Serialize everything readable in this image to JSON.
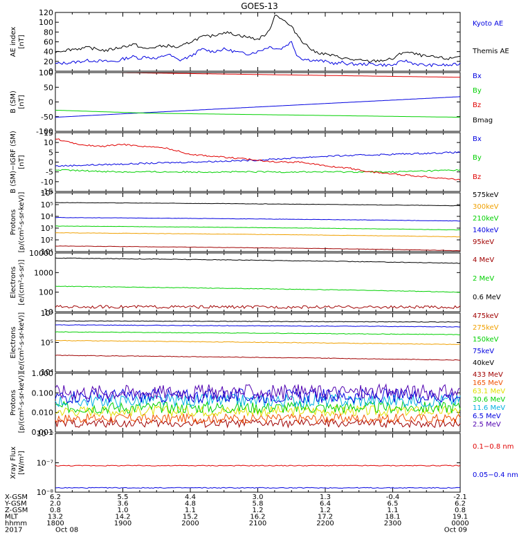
{
  "title": "GOES-13",
  "colors": {
    "black": "#000000",
    "blue": "#0000e0",
    "green": "#00d000",
    "red": "#e00000",
    "orange": "#f0a000",
    "darkred": "#a00000",
    "purple": "#5000b0",
    "cyan": "#00b0e0",
    "yellow": "#e0e000"
  },
  "chart_data": [
    {
      "type": "line",
      "ylabel": "AE index\n[nT]",
      "ylim": [
        0,
        120
      ],
      "yticks": [
        "0",
        "20",
        "40",
        "60",
        "80",
        "100",
        "120"
      ],
      "series": [
        {
          "name": "Kyoto AE",
          "color": "#0000e0",
          "x": [
            0,
            15,
            30,
            45,
            55,
            60,
            70,
            75,
            80,
            90,
            100,
            110,
            120,
            130,
            140,
            150,
            160,
            170,
            180,
            190,
            200,
            210,
            215,
            220,
            230,
            240,
            250,
            255,
            260,
            270,
            280,
            290,
            300,
            310,
            320,
            330,
            340,
            350,
            360
          ],
          "values": [
            15,
            18,
            22,
            20,
            20,
            25,
            30,
            26,
            30,
            25,
            35,
            22,
            30,
            45,
            40,
            45,
            40,
            35,
            40,
            50,
            45,
            60,
            32,
            25,
            22,
            20,
            15,
            18,
            15,
            14,
            15,
            13,
            12,
            22,
            15,
            12,
            13,
            12,
            15
          ]
        },
        {
          "name": "Themis AE",
          "color": "#000000",
          "x": [
            0,
            15,
            30,
            45,
            60,
            70,
            80,
            90,
            100,
            110,
            120,
            130,
            140,
            150,
            160,
            170,
            180,
            190,
            195,
            200,
            210,
            220,
            230,
            240,
            250,
            260,
            270,
            280,
            290,
            300,
            310,
            320,
            330,
            340,
            350,
            360
          ],
          "values": [
            40,
            45,
            48,
            42,
            50,
            55,
            45,
            50,
            52,
            48,
            60,
            70,
            72,
            80,
            75,
            70,
            65,
            80,
            115,
            110,
            90,
            60,
            40,
            35,
            30,
            25,
            22,
            20,
            22,
            25,
            40,
            35,
            30,
            28,
            25,
            32
          ]
        }
      ],
      "legend": [
        "Kyoto AE",
        "Themis AE"
      ]
    },
    {
      "type": "line",
      "ylabel": "B (SM)\n[nT]",
      "ylim": [
        -100,
        100
      ],
      "yticks": [
        "-100",
        "-50",
        "0",
        "50",
        "100"
      ],
      "series": [
        {
          "name": "Bx",
          "color": "#0000e0",
          "x": [
            0,
            360
          ],
          "values": [
            -52,
            18
          ]
        },
        {
          "name": "By",
          "color": "#00d000",
          "x": [
            0,
            80,
            360
          ],
          "values": [
            -28,
            -38,
            -52
          ]
        },
        {
          "name": "Bz",
          "color": "#e00000",
          "x": [
            0,
            360
          ],
          "values": [
            103,
            84
          ]
        },
        {
          "name": "Bmag",
          "color": "#000000",
          "x": [
            0,
            360
          ],
          "values": [
            118,
            105
          ]
        }
      ],
      "legend": [
        "Bx",
        "By",
        "Bz",
        "Bmag"
      ]
    },
    {
      "type": "line",
      "ylabel": "B (SM)−IGRF (SM)\n[nT]",
      "ylim": [
        -15,
        15
      ],
      "yticks": [
        "-15",
        "-10",
        "-5",
        "0",
        "5",
        "10",
        "15"
      ],
      "series": [
        {
          "name": "Bx",
          "color": "#0000e0",
          "x": [
            0,
            60,
            120,
            180,
            240,
            300,
            360
          ],
          "values": [
            -2,
            -1,
            0,
            1,
            3,
            4,
            5
          ]
        },
        {
          "name": "By",
          "color": "#00d000",
          "x": [
            0,
            60,
            120,
            180,
            240,
            300,
            360
          ],
          "values": [
            -4,
            -5,
            -5,
            -5,
            -5,
            -5,
            -4
          ]
        },
        {
          "name": "Bz",
          "color": "#e00000",
          "x": [
            0,
            20,
            40,
            60,
            80,
            100,
            120,
            140,
            160,
            180,
            200,
            220,
            240,
            260,
            280,
            300,
            320,
            340,
            360
          ],
          "values": [
            12,
            9,
            8,
            9,
            8,
            7,
            4,
            3,
            2,
            1,
            0,
            0,
            -2,
            -3,
            -5,
            -6,
            -7,
            -8,
            -9
          ]
        }
      ],
      "legend": [
        "Bx",
        "By",
        "Bz"
      ]
    },
    {
      "type": "line",
      "ylabel": "Protons\n[p/(cm²-s-sr-keV)]",
      "log": true,
      "ylim": [
        10,
        1000000
      ],
      "yticks": [
        "10¹",
        "10²",
        "10³",
        "10⁴",
        "10⁵",
        "10⁶"
      ],
      "series": [
        {
          "name": "575keV",
          "color": "#000000",
          "x": [
            0,
            360
          ],
          "values": [
            150000,
            80000
          ]
        },
        {
          "name": "300keV",
          "color": "#f0a000",
          "x": [
            0,
            360
          ],
          "values": [
            400,
            180
          ]
        },
        {
          "name": "210keV",
          "color": "#00d000",
          "x": [
            0,
            360
          ],
          "values": [
            1500,
            700
          ]
        },
        {
          "name": "140keV",
          "color": "#0000e0",
          "x": [
            0,
            360
          ],
          "values": [
            8000,
            4000
          ]
        },
        {
          "name": "95keV",
          "color": "#a00000",
          "x": [
            0,
            360
          ],
          "values": [
            30,
            12
          ]
        }
      ],
      "legend": [
        "575keV",
        "300keV",
        "210keV",
        "140keV",
        "95keV"
      ]
    },
    {
      "type": "line",
      "ylabel": "Electrons\n[e/(cm²-s-sr)]",
      "log": true,
      "ylim": [
        10,
        10000
      ],
      "yticks": [
        "10",
        "100",
        "1000",
        "10000"
      ],
      "series": [
        {
          "name": "4 MeV",
          "color": "#a00000",
          "x": [
            0,
            360
          ],
          "values": [
            18,
            17
          ]
        },
        {
          "name": "2 MeV",
          "color": "#00d000",
          "x": [
            0,
            360
          ],
          "values": [
            200,
            100
          ]
        },
        {
          "name": "0.6 MeV",
          "color": "#000000",
          "x": [
            0,
            360
          ],
          "values": [
            5500,
            3000
          ]
        }
      ],
      "legend": [
        "4 MeV",
        "2 MeV",
        "0.6 MeV"
      ]
    },
    {
      "type": "line",
      "ylabel": "Electrons\n[e/(cm²-s-sr-keV)]",
      "log": true,
      "ylim": [
        1000,
        1000000
      ],
      "yticks": [
        "10⁴",
        "10⁵",
        "10⁶"
      ],
      "series": [
        {
          "name": "475keV",
          "color": "#a00000",
          "x": [
            0,
            360
          ],
          "values": [
            7000,
            4000
          ]
        },
        {
          "name": "275keV",
          "color": "#f0a000",
          "x": [
            0,
            360
          ],
          "values": [
            40000,
            25000
          ]
        },
        {
          "name": "150keV",
          "color": "#00d000",
          "x": [
            0,
            360
          ],
          "values": [
            110000,
            80000
          ]
        },
        {
          "name": "75keV",
          "color": "#0000e0",
          "x": [
            0,
            360
          ],
          "values": [
            250000,
            200000
          ]
        },
        {
          "name": "40keV",
          "color": "#000000",
          "x": [
            0,
            360
          ],
          "values": [
            400000,
            350000
          ]
        }
      ],
      "legend": [
        "475keV",
        "275keV",
        "150keV",
        "75keV",
        "40keV"
      ]
    },
    {
      "type": "line",
      "ylabel": "Protons\n[p/(cm²-s-sr-keV)]",
      "log": true,
      "ylim": [
        0.001,
        1
      ],
      "yticks": [
        "0.001",
        "0.010",
        "0.100",
        "1.000"
      ],
      "series": [
        {
          "name": "433 MeV",
          "color": "#a00000",
          "level": 0.0028
        },
        {
          "name": "165 MeV",
          "color": "#f05000",
          "level": 0.005
        },
        {
          "name": "63.1 MeV",
          "color": "#e0e000",
          "level": 0.012
        },
        {
          "name": "30.6 MeV",
          "color": "#00d000",
          "level": 0.018
        },
        {
          "name": "11.6 MeV",
          "color": "#00b0e0",
          "level": 0.04
        },
        {
          "name": "6.5 MeV",
          "color": "#0000e0",
          "level": 0.07
        },
        {
          "name": "2.5 MeV",
          "color": "#5000b0",
          "level": 0.11
        }
      ],
      "legend": [
        "433 MeV",
        "165 MeV",
        "63.1 MeV",
        "30.6 MeV",
        "11.6 MeV",
        "6.5 MeV",
        "2.5 MeV"
      ]
    },
    {
      "type": "line",
      "ylabel": "Xray Flux\n[W/m²]",
      "log": true,
      "ylim": [
        1e-08,
        1e-06
      ],
      "yticks": [
        "10⁻⁸",
        "10⁻⁷",
        "10⁻⁶"
      ],
      "series": [
        {
          "name": "0.1-0.8 nm",
          "color": "#e00000",
          "level": 8e-08
        },
        {
          "name": "0.05-0.4 nm",
          "color": "#0000e0",
          "level": 1.4e-08
        }
      ],
      "legend": [
        "0.1−0.8 nm",
        "0.05−0.4 nm"
      ]
    }
  ],
  "ephemeris": {
    "labels": [
      "X-GSM",
      "Y-GSM",
      "Z-GSM",
      "MLT",
      "hhmm",
      "2017"
    ],
    "columns": [
      [
        "6.2",
        "2.0",
        "0.8",
        "13.2",
        "1800",
        "Oct 08"
      ],
      [
        "5.5",
        "3.6",
        "1.0",
        "14.2",
        "1900",
        ""
      ],
      [
        "4.4",
        "4.8",
        "1.1",
        "15.2",
        "2000",
        ""
      ],
      [
        "3.0",
        "5.8",
        "1.2",
        "16.2",
        "2100",
        ""
      ],
      [
        "1.3",
        "6.4",
        "1.2",
        "17.2",
        "2200",
        ""
      ],
      [
        "-0.4",
        "6.5",
        "1.1",
        "18.1",
        "2300",
        ""
      ],
      [
        "-2.1",
        "6.2",
        "0.8",
        "19.1",
        "0000",
        "Oct 09"
      ]
    ]
  }
}
